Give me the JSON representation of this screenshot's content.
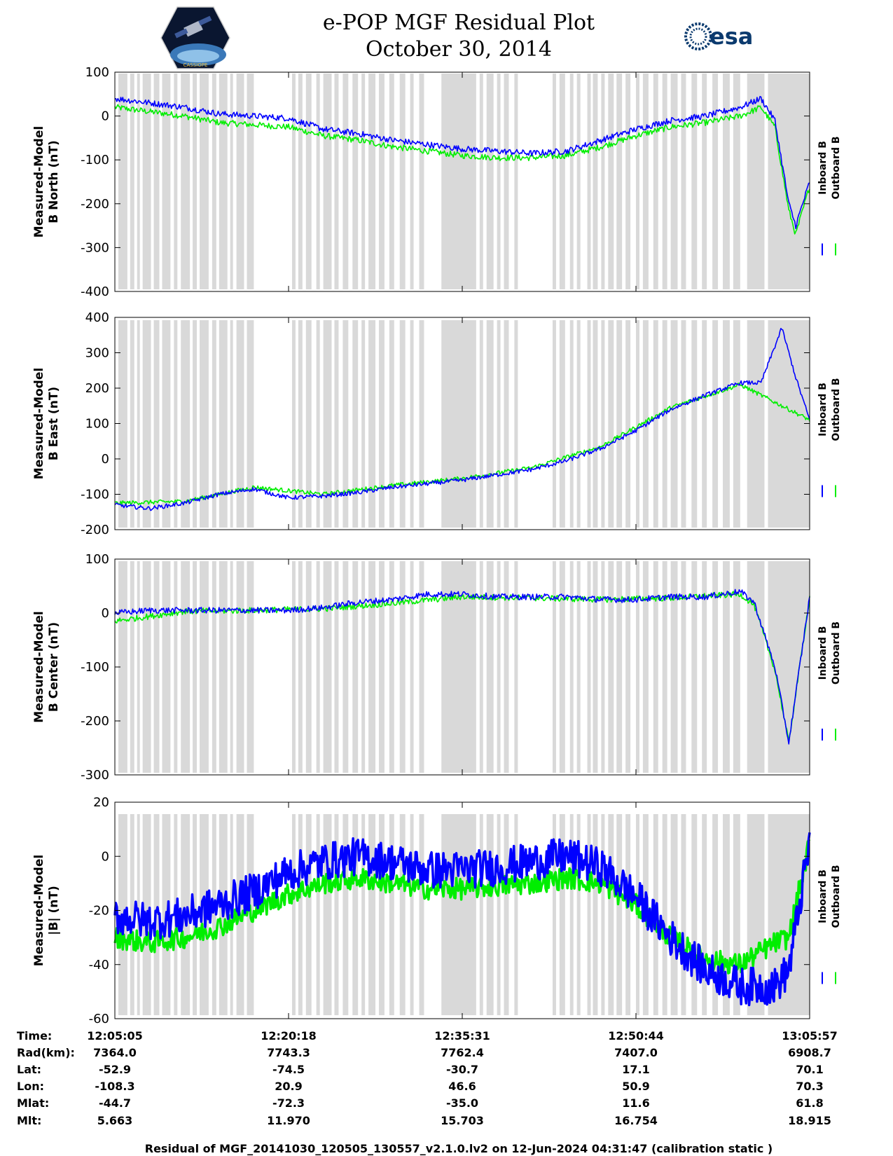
{
  "header": {
    "title_line1": "e-POP MGF Residual Plot",
    "title_line2": "October 30, 2014",
    "logo_left_text": "CASSIOPE",
    "logo_right_text": "esa"
  },
  "colors": {
    "inboard": "#0000ff",
    "outboard": "#00ee00",
    "gap": "#d9d9d9"
  },
  "chart_data": {
    "type": "line",
    "x_ticks": [
      "12:05:05",
      "12:20:18",
      "12:35:31",
      "12:50:44",
      "13:05:57"
    ],
    "legend": [
      "Inboard B",
      "Outboard B"
    ],
    "panels": [
      {
        "ylabel1": "Measured-Model",
        "ylabel2": "B North (nT)",
        "ylim": [
          -400,
          100
        ],
        "yticks": [
          "100",
          "0",
          "-100",
          "-200",
          "-300",
          "-400"
        ],
        "inboard_t": [
          0,
          0.05,
          0.1,
          0.15,
          0.2,
          0.25,
          0.3,
          0.35,
          0.4,
          0.45,
          0.5,
          0.55,
          0.6,
          0.65,
          0.7,
          0.75,
          0.8,
          0.85,
          0.9,
          0.93,
          0.95,
          0.97,
          0.98,
          1
        ],
        "inboard_v": [
          40,
          30,
          20,
          5,
          0,
          -5,
          -30,
          -40,
          -55,
          -65,
          -75,
          -80,
          -85,
          -80,
          -55,
          -30,
          -10,
          0,
          20,
          40,
          -10,
          -200,
          -250,
          -150
        ],
        "outboard_t": [
          0,
          0.05,
          0.1,
          0.15,
          0.2,
          0.25,
          0.3,
          0.35,
          0.4,
          0.45,
          0.5,
          0.55,
          0.6,
          0.65,
          0.7,
          0.75,
          0.8,
          0.85,
          0.9,
          0.93,
          0.95,
          0.97,
          0.98,
          1
        ],
        "outboard_v": [
          20,
          10,
          0,
          -15,
          -20,
          -25,
          -45,
          -55,
          -70,
          -80,
          -90,
          -95,
          -95,
          -90,
          -70,
          -45,
          -25,
          -15,
          0,
          20,
          -25,
          -215,
          -270,
          -160
        ]
      },
      {
        "ylabel1": "Measured-Model",
        "ylabel2": "B East (nT)",
        "ylim": [
          -200,
          400
        ],
        "yticks": [
          "400",
          "300",
          "200",
          "100",
          "0",
          "-100",
          "-200"
        ],
        "inboard_t": [
          0,
          0.05,
          0.1,
          0.15,
          0.2,
          0.25,
          0.3,
          0.35,
          0.4,
          0.45,
          0.5,
          0.55,
          0.6,
          0.65,
          0.7,
          0.75,
          0.8,
          0.85,
          0.9,
          0.93,
          0.96,
          0.98,
          1
        ],
        "inboard_v": [
          -130,
          -140,
          -125,
          -100,
          -85,
          -110,
          -105,
          -95,
          -80,
          -70,
          -60,
          -45,
          -30,
          -5,
          30,
          80,
          140,
          180,
          215,
          215,
          370,
          230,
          110
        ],
        "outboard_t": [
          0,
          0.1,
          0.2,
          0.3,
          0.4,
          0.5,
          0.6,
          0.7,
          0.8,
          0.9,
          1
        ],
        "outboard_v": [
          -125,
          -120,
          -80,
          -100,
          -75,
          -55,
          -25,
          35,
          145,
          210,
          110
        ]
      },
      {
        "ylabel1": "Measured-Model",
        "ylabel2": "B Center (nT)",
        "ylim": [
          -300,
          100
        ],
        "yticks": [
          "100",
          "0",
          "-100",
          "-200",
          "-300"
        ],
        "inboard_t": [
          0,
          0.05,
          0.1,
          0.15,
          0.2,
          0.25,
          0.3,
          0.35,
          0.4,
          0.45,
          0.5,
          0.55,
          0.6,
          0.65,
          0.7,
          0.75,
          0.8,
          0.85,
          0.9,
          0.92,
          0.95,
          0.97,
          1
        ],
        "inboard_v": [
          0,
          5,
          5,
          5,
          5,
          5,
          10,
          20,
          25,
          35,
          35,
          30,
          30,
          30,
          25,
          25,
          30,
          30,
          40,
          20,
          -100,
          -240,
          30
        ],
        "outboard_t": [
          0,
          0.1,
          0.2,
          0.3,
          0.4,
          0.5,
          0.6,
          0.7,
          0.8,
          0.9,
          0.92,
          0.95,
          0.97,
          1
        ],
        "outboard_v": [
          -15,
          3,
          5,
          8,
          18,
          30,
          28,
          25,
          28,
          35,
          15,
          -105,
          -240,
          30
        ]
      },
      {
        "ylabel1": "Measured-Model",
        "ylabel2": "|B| (nT)",
        "ylim": [
          -60,
          20
        ],
        "yticks": [
          "20",
          "0",
          "-20",
          "-40",
          "-60"
        ],
        "inboard_t": [
          0,
          0.05,
          0.1,
          0.15,
          0.2,
          0.25,
          0.3,
          0.35,
          0.4,
          0.45,
          0.5,
          0.55,
          0.6,
          0.65,
          0.7,
          0.75,
          0.8,
          0.85,
          0.9,
          0.95,
          0.97,
          1
        ],
        "inboard_v": [
          -22,
          -24,
          -22,
          -18,
          -13,
          -6,
          -2,
          0,
          -2,
          -5,
          -5,
          -4,
          -2,
          0,
          -4,
          -15,
          -30,
          -42,
          -48,
          -48,
          -42,
          5
        ],
        "outboard_t": [
          0,
          0.05,
          0.1,
          0.15,
          0.2,
          0.25,
          0.3,
          0.35,
          0.4,
          0.45,
          0.5,
          0.55,
          0.6,
          0.65,
          0.7,
          0.75,
          0.8,
          0.85,
          0.9,
          0.95,
          0.97,
          1
        ],
        "outboard_v": [
          -30,
          -32,
          -30,
          -26,
          -20,
          -14,
          -10,
          -8,
          -10,
          -12,
          -12,
          -11,
          -10,
          -8,
          -10,
          -18,
          -30,
          -38,
          -40,
          -32,
          -30,
          5
        ]
      }
    ],
    "gap_bands": [
      [
        0.005,
        0.018
      ],
      [
        0.022,
        0.028
      ],
      [
        0.032,
        0.036
      ],
      [
        0.04,
        0.052
      ],
      [
        0.056,
        0.064
      ],
      [
        0.068,
        0.08
      ],
      [
        0.085,
        0.09
      ],
      [
        0.095,
        0.108
      ],
      [
        0.112,
        0.118
      ],
      [
        0.122,
        0.135
      ],
      [
        0.14,
        0.146
      ],
      [
        0.15,
        0.162
      ],
      [
        0.166,
        0.17
      ],
      [
        0.175,
        0.186
      ],
      [
        0.19,
        0.2
      ],
      [
        0.255,
        0.26
      ],
      [
        0.264,
        0.27
      ],
      [
        0.275,
        0.283
      ],
      [
        0.29,
        0.295
      ],
      [
        0.3,
        0.312
      ],
      [
        0.316,
        0.322
      ],
      [
        0.328,
        0.336
      ],
      [
        0.342,
        0.35
      ],
      [
        0.355,
        0.36
      ],
      [
        0.365,
        0.375
      ],
      [
        0.38,
        0.388
      ],
      [
        0.395,
        0.402
      ],
      [
        0.41,
        0.418
      ],
      [
        0.425,
        0.43
      ],
      [
        0.438,
        0.445
      ],
      [
        0.47,
        0.52
      ],
      [
        0.525,
        0.53
      ],
      [
        0.535,
        0.545
      ],
      [
        0.55,
        0.555
      ],
      [
        0.56,
        0.567
      ],
      [
        0.575,
        0.58
      ],
      [
        0.63,
        0.635
      ],
      [
        0.64,
        0.648
      ],
      [
        0.655,
        0.66
      ],
      [
        0.665,
        0.67
      ],
      [
        0.68,
        0.685
      ],
      [
        0.688,
        0.695
      ],
      [
        0.7,
        0.705
      ],
      [
        0.71,
        0.718
      ],
      [
        0.722,
        0.73
      ],
      [
        0.735,
        0.742
      ],
      [
        0.75,
        0.755
      ],
      [
        0.76,
        0.768
      ],
      [
        0.775,
        0.782
      ],
      [
        0.788,
        0.795
      ],
      [
        0.8,
        0.81
      ],
      [
        0.815,
        0.822
      ],
      [
        0.83,
        0.838
      ],
      [
        0.845,
        0.852
      ],
      [
        0.86,
        0.868
      ],
      [
        0.875,
        0.885
      ],
      [
        0.89,
        0.9
      ],
      [
        0.91,
        0.935
      ],
      [
        0.94,
        1.0
      ]
    ],
    "info_rows": [
      {
        "label": "Time:",
        "values": [
          "12:05:05",
          "12:20:18",
          "12:35:31",
          "12:50:44",
          "13:05:57"
        ]
      },
      {
        "label": "Rad(km):",
        "values": [
          "7364.0",
          "7743.3",
          "7762.4",
          "7407.0",
          "6908.7"
        ]
      },
      {
        "label": "Lat:",
        "values": [
          "-52.9",
          "-74.5",
          "-30.7",
          "17.1",
          "70.1"
        ]
      },
      {
        "label": "Lon:",
        "values": [
          "-108.3",
          "20.9",
          "46.6",
          "50.9",
          "70.3"
        ]
      },
      {
        "label": "Mlat:",
        "values": [
          "-44.7",
          "-72.3",
          "-35.0",
          "11.6",
          "61.8"
        ]
      },
      {
        "label": "Mlt:",
        "values": [
          "5.663",
          "11.970",
          "15.703",
          "16.754",
          "18.915"
        ]
      }
    ]
  },
  "footer": "Residual of MGF_20141030_120505_130557_v2.1.0.lv2 on 12-Jun-2024 04:31:47 (calibration static )"
}
